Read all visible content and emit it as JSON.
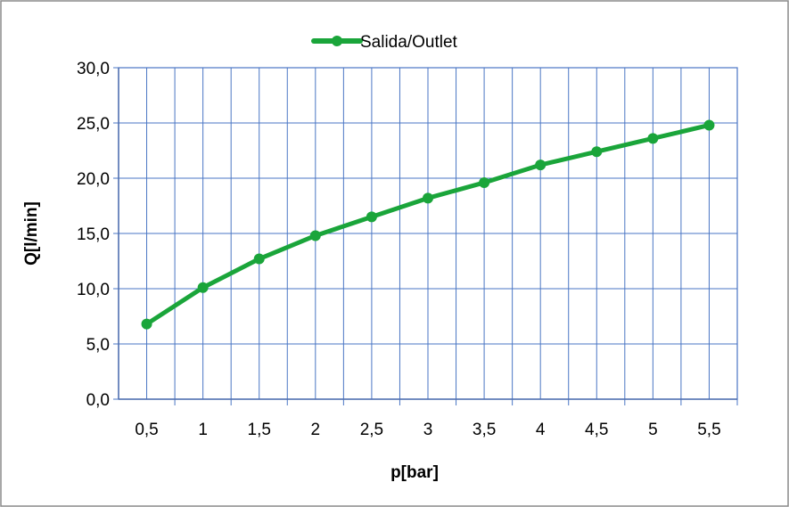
{
  "chart_data": {
    "type": "line",
    "title": "",
    "xlabel": "p[bar]",
    "ylabel": "Q[l/min]",
    "categories": [
      "0,5",
      "1",
      "1,5",
      "2",
      "2,5",
      "3",
      "3,5",
      "4",
      "4,5",
      "5",
      "5,5"
    ],
    "series": [
      {
        "name": "Salida/Outlet",
        "color": "#1aa53a",
        "values": [
          6.8,
          10.1,
          12.7,
          14.8,
          16.5,
          18.2,
          19.6,
          21.2,
          22.4,
          23.6,
          24.8
        ]
      }
    ],
    "y_ticks": [
      "0,0",
      "5,0",
      "10,0",
      "15,0",
      "20,0",
      "25,0",
      "30,0"
    ],
    "ylim": [
      0,
      30
    ],
    "y_step": 5,
    "grid": true,
    "grid_color": "#4a76c4",
    "legend_position": "top-center"
  }
}
